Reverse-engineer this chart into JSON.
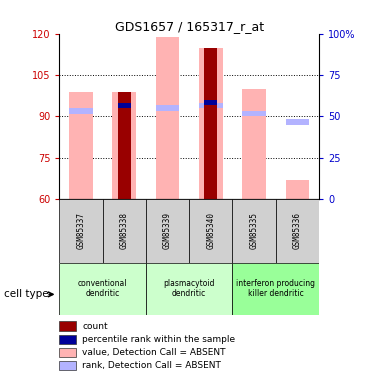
{
  "title": "GDS1657 / 165317_r_at",
  "samples": [
    "GSM85337",
    "GSM85338",
    "GSM85339",
    "GSM85340",
    "GSM85335",
    "GSM85336"
  ],
  "ylim": [
    60,
    120
  ],
  "y2lim": [
    0,
    100
  ],
  "yticks": [
    60,
    75,
    90,
    105,
    120
  ],
  "y2ticks": [
    0,
    25,
    50,
    75,
    100
  ],
  "gridlines": [
    75,
    90,
    105
  ],
  "value_absent_tops": [
    99,
    99,
    119,
    115,
    100,
    67
  ],
  "value_absent_bottoms": [
    60,
    60,
    60,
    60,
    60,
    60
  ],
  "rank_absent_values": [
    92,
    null,
    93,
    94,
    91,
    88
  ],
  "rank_absent_heights": [
    2.0,
    null,
    2.0,
    2.0,
    2.0,
    2.0
  ],
  "count_tops": [
    null,
    99,
    null,
    115,
    null,
    null
  ],
  "count_bottoms": [
    null,
    60,
    null,
    60,
    null,
    null
  ],
  "percentile_tops": [
    null,
    94,
    null,
    95,
    null,
    null
  ],
  "percentile_heights": [
    null,
    2.0,
    null,
    2.0,
    null,
    null
  ],
  "cell_groups": [
    {
      "label": "conventional\ndendritic",
      "start": 0,
      "end": 2,
      "color": "#ccffcc"
    },
    {
      "label": "plasmacytoid\ndendritic",
      "start": 2,
      "end": 4,
      "color": "#ccffcc"
    },
    {
      "label": "interferon producing\nkiller dendritic",
      "start": 4,
      "end": 6,
      "color": "#99ff99"
    }
  ],
  "color_value_absent": "#ffb3b3",
  "color_rank_absent": "#b3b3ff",
  "color_count": "#990000",
  "color_percentile": "#000099",
  "ylabel_color_left": "#cc0000",
  "ylabel_color_right": "#0000cc",
  "legend_items": [
    {
      "color": "#990000",
      "label": "count"
    },
    {
      "color": "#000099",
      "label": "percentile rank within the sample"
    },
    {
      "color": "#ffb3b3",
      "label": "value, Detection Call = ABSENT"
    },
    {
      "color": "#b3b3ff",
      "label": "rank, Detection Call = ABSENT"
    }
  ]
}
